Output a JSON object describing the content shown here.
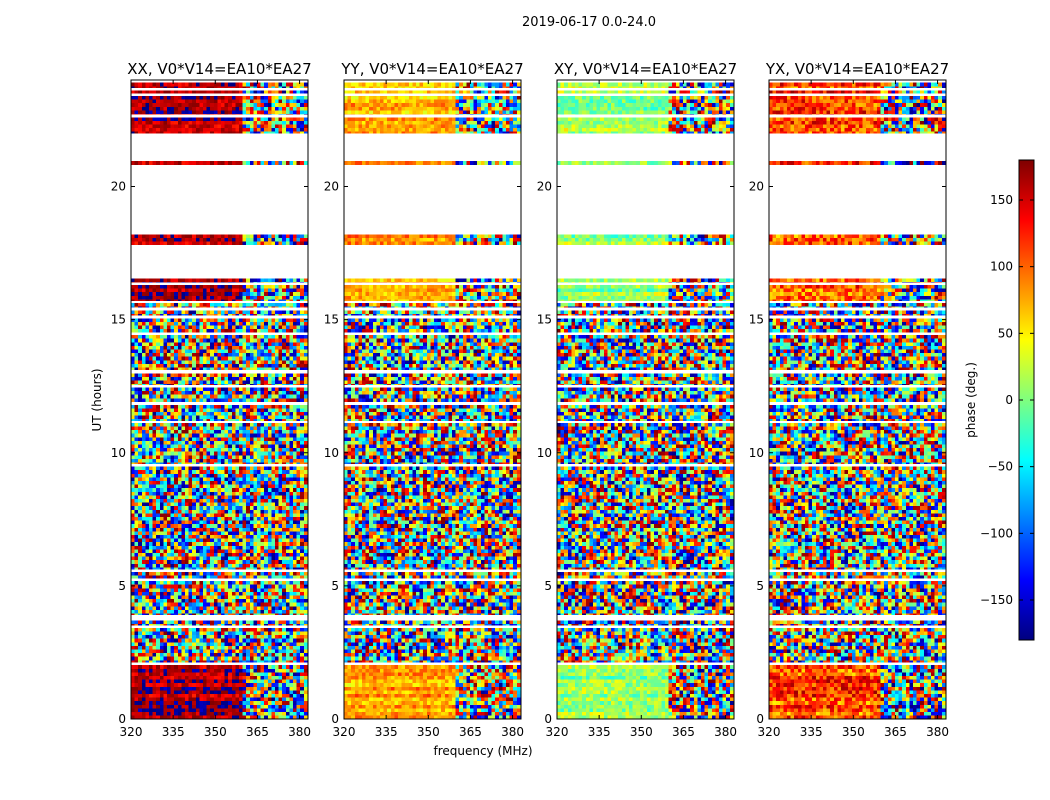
{
  "figure": {
    "suptitle": "2019-06-17 0.0-24.0"
  },
  "chart_data": {
    "type": "heatmap",
    "shared": {
      "xlabel": "frequency (MHz)",
      "ylabel": "UT (hours)",
      "xlim": [
        320,
        383
      ],
      "ylim": [
        0,
        24
      ],
      "xticks": [
        320,
        335,
        350,
        365,
        380
      ],
      "yticks": [
        0,
        5,
        10,
        15,
        20
      ],
      "channel_break_mhz": 359.5
    },
    "panels": [
      {
        "id": "xx",
        "title": "XX, V0*V14=EA10*EA27",
        "smooth_phase_deg": 165,
        "spread_deg": 55
      },
      {
        "id": "yy",
        "title": "YY, V0*V14=EA10*EA27",
        "smooth_phase_deg": 75,
        "spread_deg": 55
      },
      {
        "id": "xy",
        "title": "XY, V0*V14=EA10*EA27",
        "smooth_phase_deg": 10,
        "spread_deg": 60
      },
      {
        "id": "yx",
        "title": "YX, V0*V14=EA10*EA27",
        "smooth_phase_deg": 110,
        "spread_deg": 90
      }
    ],
    "time_coverage_hours": [
      {
        "start": 0.0,
        "end": 2.02,
        "type": "coherent"
      },
      {
        "start": 2.12,
        "end": 3.42,
        "type": "noise"
      },
      {
        "start": 3.52,
        "end": 3.7,
        "type": "noise"
      },
      {
        "start": 3.9,
        "end": 5.18,
        "type": "noise"
      },
      {
        "start": 5.28,
        "end": 5.52,
        "type": "noise"
      },
      {
        "start": 5.62,
        "end": 9.48,
        "type": "noise"
      },
      {
        "start": 9.58,
        "end": 11.12,
        "type": "noise"
      },
      {
        "start": 11.2,
        "end": 11.8,
        "type": "noise"
      },
      {
        "start": 11.9,
        "end": 12.45,
        "type": "noise"
      },
      {
        "start": 12.55,
        "end": 12.98,
        "type": "noise"
      },
      {
        "start": 13.1,
        "end": 14.42,
        "type": "noise"
      },
      {
        "start": 14.52,
        "end": 15.05,
        "type": "noise"
      },
      {
        "start": 15.15,
        "end": 15.35,
        "type": "noise"
      },
      {
        "start": 15.45,
        "end": 15.62,
        "type": "noise"
      },
      {
        "start": 15.7,
        "end": 16.3,
        "type": "coherent"
      },
      {
        "start": 16.4,
        "end": 16.55,
        "type": "coherent"
      },
      {
        "start": 17.8,
        "end": 18.2,
        "type": "coherent"
      },
      {
        "start": 20.8,
        "end": 20.95,
        "type": "coherent"
      },
      {
        "start": 22.0,
        "end": 22.6,
        "type": "coherent"
      },
      {
        "start": 22.7,
        "end": 23.4,
        "type": "coherent"
      },
      {
        "start": 23.5,
        "end": 23.6,
        "type": "coherent"
      },
      {
        "start": 23.7,
        "end": 23.9,
        "type": "coherent"
      }
    ],
    "colorbar": {
      "label": "phase (deg.)",
      "range": [
        -180,
        180
      ],
      "ticks": [
        150,
        100,
        50,
        0,
        -50,
        -100,
        -150
      ],
      "tick_labels": [
        "150",
        "100",
        "50",
        "0",
        "−50",
        "−100",
        "−150"
      ],
      "colormap": "jet",
      "colormap_stops": [
        "#00007f",
        "#0000ff",
        "#007fff",
        "#00ffff",
        "#7fff7f",
        "#ffff00",
        "#ff7f00",
        "#ff0000",
        "#7f0000"
      ]
    }
  }
}
